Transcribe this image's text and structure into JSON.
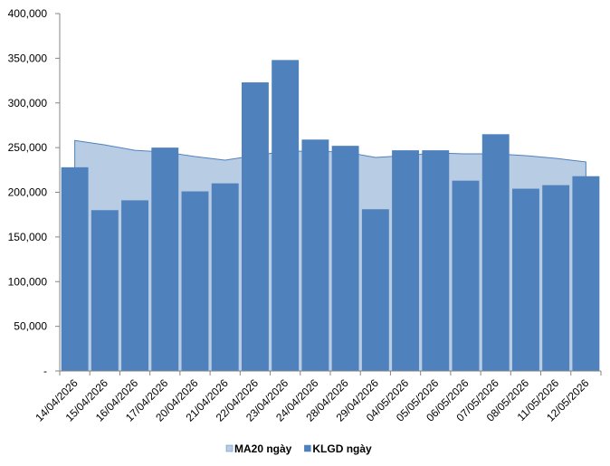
{
  "chart_data": {
    "type": "combo",
    "categories": [
      "14/04/2026",
      "15/04/2026",
      "16/04/2026",
      "17/04/2026",
      "20/04/2026",
      "21/04/2026",
      "22/04/2026",
      "23/04/2026",
      "24/04/2026",
      "28/04/2026",
      "29/04/2026",
      "04/05/2026",
      "05/05/2026",
      "06/05/2026",
      "07/05/2026",
      "08/05/2026",
      "11/05/2026",
      "12/05/2026"
    ],
    "series": [
      {
        "name": "MA20 ngày",
        "type": "area",
        "color": "#b8cce4",
        "values": [
          258000,
          253000,
          247000,
          245000,
          240000,
          236000,
          241000,
          246000,
          246000,
          245000,
          239000,
          241000,
          244000,
          243000,
          243000,
          241000,
          238000,
          234000
        ]
      },
      {
        "name": "KLGD ngày",
        "type": "bar",
        "color": "#4f81bd",
        "values": [
          228000,
          180000,
          191000,
          250000,
          201000,
          210000,
          323000,
          348000,
          259000,
          252000,
          181000,
          247000,
          247000,
          213000,
          265000,
          204000,
          208000,
          218000
        ]
      }
    ],
    "ylim": [
      0,
      400000
    ],
    "yticks": [
      {
        "value": 0,
        "label": "-"
      },
      {
        "value": 50000,
        "label": "50,000"
      },
      {
        "value": 100000,
        "label": "100,000"
      },
      {
        "value": 150000,
        "label": "150,000"
      },
      {
        "value": 200000,
        "label": "200,000"
      },
      {
        "value": 250000,
        "label": "250,000"
      },
      {
        "value": 300000,
        "label": "300,000"
      },
      {
        "value": 350000,
        "label": "350,000"
      },
      {
        "value": 400000,
        "label": "400,000"
      }
    ],
    "grid": false,
    "legend": "bottom"
  }
}
